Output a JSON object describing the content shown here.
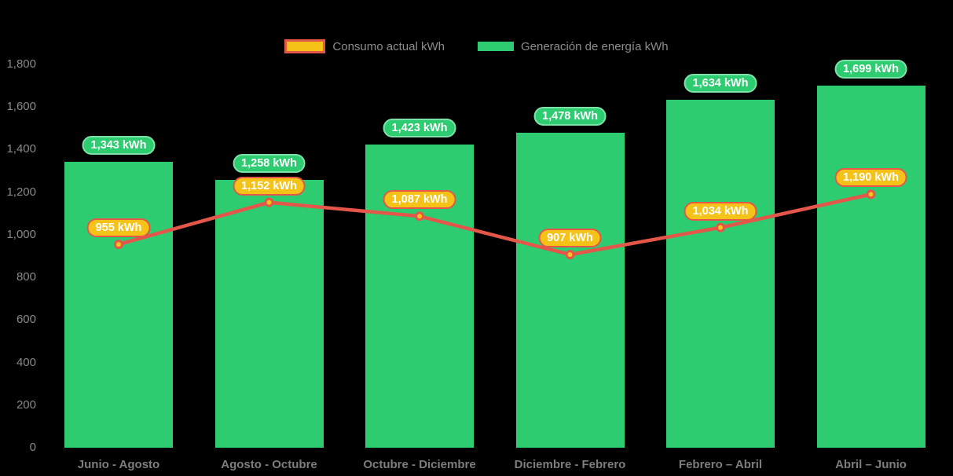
{
  "legend": {
    "items": [
      {
        "label": "Consumo actual kWh",
        "swatch": "line",
        "fill": "#f5c318",
        "border": "#e45649"
      },
      {
        "label": "Generación de energía kWh",
        "swatch": "bar",
        "fill": "#2ecc71",
        "border": "#2ecc71"
      }
    ]
  },
  "chart_data": {
    "type": "bar+line",
    "title": "",
    "categories": [
      "Junio - Agosto",
      "Agosto - Octubre",
      "Octubre - Diciembre",
      "Diciembre - Febrero",
      "Febrero – Abril",
      "Abril – Junio"
    ],
    "series": [
      {
        "name": "Generación de energía kWh",
        "type": "bar",
        "color": "#2ecc71",
        "label_fill": "#2ecc71",
        "label_border": "#7ee2a8",
        "values": [
          1343,
          1258,
          1423,
          1478,
          1634,
          1699
        ],
        "value_labels": [
          "1,343 kWh",
          "1,258 kWh",
          "1,423 kWh",
          "1,478 kWh",
          "1,634 kWh",
          "1,699 kWh"
        ]
      },
      {
        "name": "Consumo actual kWh",
        "type": "line",
        "color": "#e45649",
        "marker_fill": "#f6c518",
        "label_fill": "#f5c318",
        "label_border": "#e45649",
        "values": [
          955,
          1152,
          1087,
          907,
          1034,
          1190
        ],
        "value_labels": [
          "955 kWh",
          "1,152 kWh",
          "1,087 kWh",
          "907 kWh",
          "1,034 kWh",
          "1,190 kWh"
        ]
      }
    ],
    "ylim": [
      0,
      1800
    ],
    "ytick_step": 200,
    "ytick_labels": [
      "0",
      "200",
      "400",
      "600",
      "800",
      "1,000",
      "1,200",
      "1,400",
      "1,600",
      "1,800"
    ],
    "grid": false,
    "legend_position": "top",
    "background": "#000000"
  }
}
